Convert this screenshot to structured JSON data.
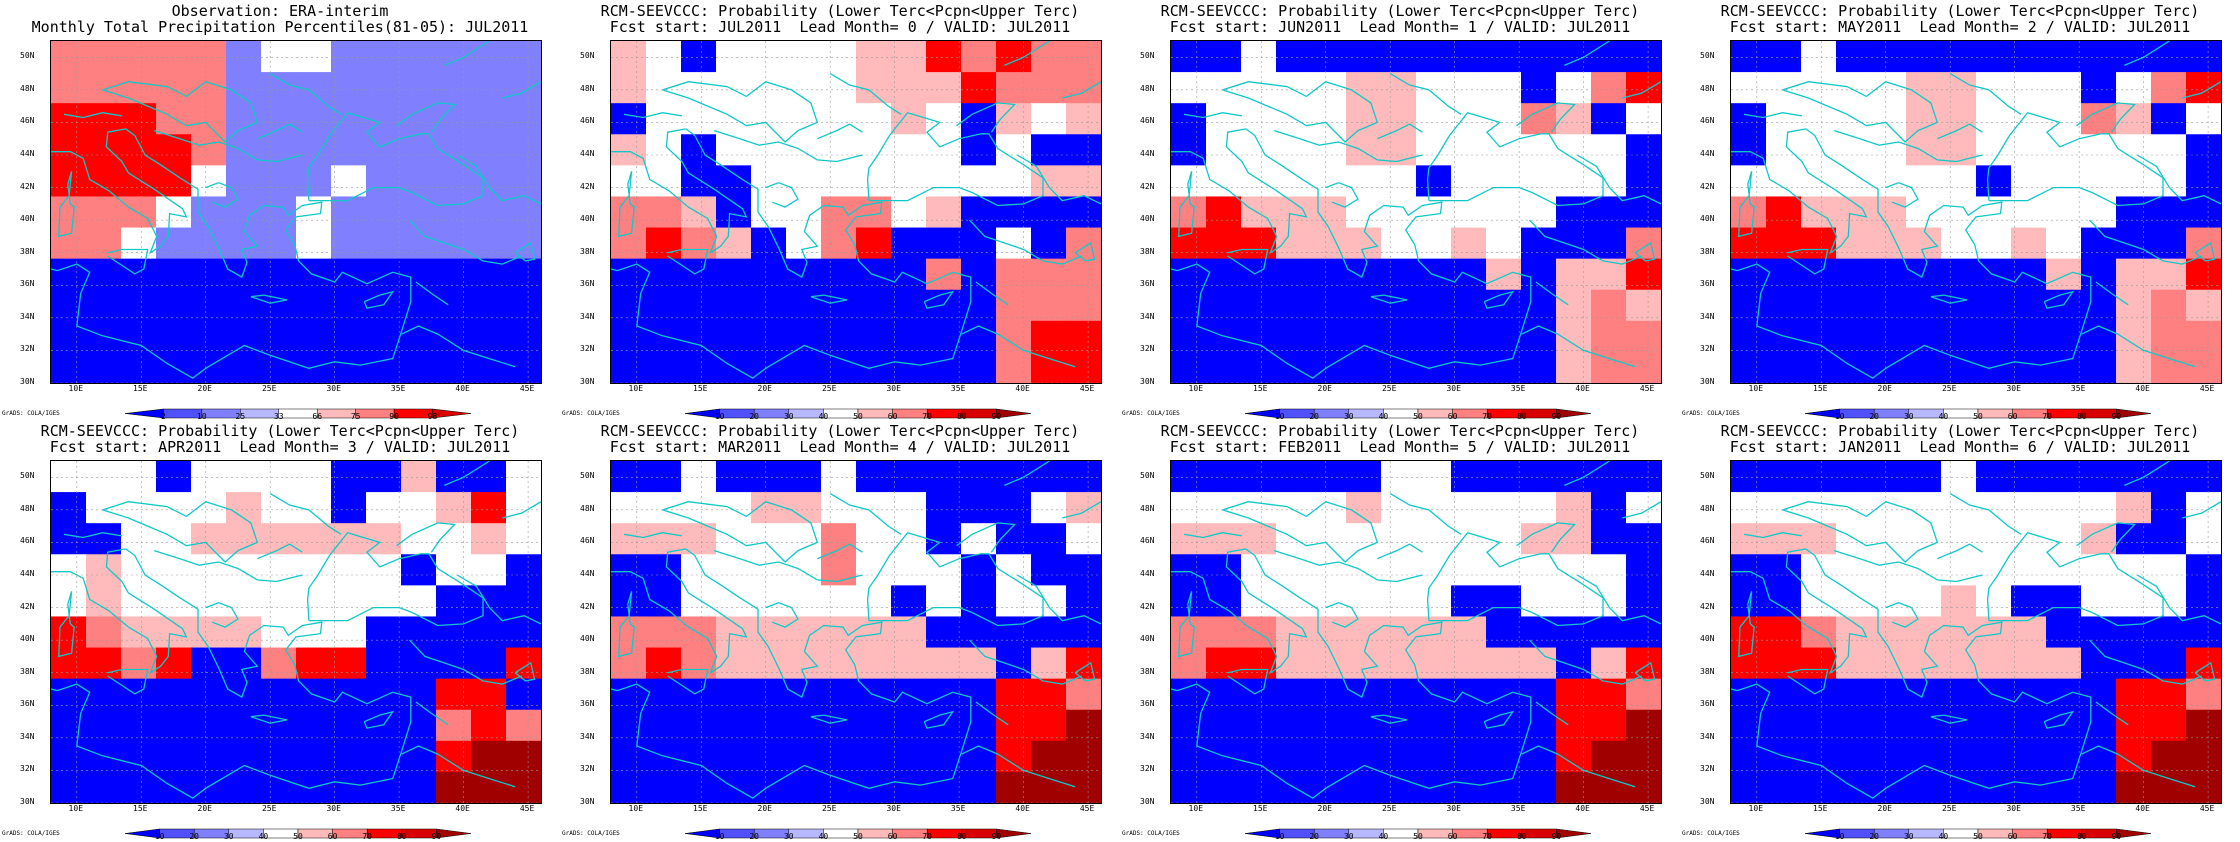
{
  "colors": {
    "blue": "#0000ff",
    "mid_blue": "#5050ff",
    "light_blue": "#8080ff",
    "pale_blue": "#b8b8ff",
    "white": "#ffffff",
    "pale_red": "#ffbbbb",
    "light_red": "#ff8080",
    "red": "#ff0000",
    "mid_red": "#d80000",
    "dark_red": "#a00000",
    "coast": "#10c8c8"
  },
  "panels": [
    {
      "title1": "Observation: ERA-interim",
      "title2": "Monthly Total Precipitation Percentiles(81-05): JUL2011",
      "colorbar_labels": [
        "2",
        "10",
        "25",
        "33",
        "66",
        "75",
        "90",
        "98"
      ],
      "credit": "GrADS: COLA/IGES",
      "ylabels": [
        "50N",
        "48N",
        "46N",
        "44N",
        "42N",
        "40N",
        "38N",
        "36N",
        "34N",
        "32N",
        "30N"
      ],
      "xlabels": [
        "10E",
        "15E",
        "20E",
        "25E",
        "30E",
        "35E",
        "40E",
        "45E"
      ]
    },
    {
      "title1": "RCM-SEEVCCC: Probability (Lower Terc<Pcpn<Upper Terc)",
      "title2": "Fcst start: JUL2011  Lead Month= 0 / VALID: JUL2011",
      "colorbar_labels": [
        "10",
        "20",
        "30",
        "40",
        "50",
        "60",
        "70",
        "80",
        "90"
      ],
      "credit": "GrADS: COLA/IGES",
      "ylabels": [
        "50N",
        "48N",
        "46N",
        "44N",
        "42N",
        "40N",
        "38N",
        "36N",
        "34N",
        "32N",
        "30N"
      ],
      "xlabels": [
        "10E",
        "15E",
        "20E",
        "25E",
        "30E",
        "35E",
        "40E",
        "45E"
      ]
    },
    {
      "title1": "RCM-SEEVCCC: Probability (Lower Terc<Pcpn<Upper Terc)",
      "title2": "Fcst start: JUN2011  Lead Month= 1 / VALID: JUL2011",
      "colorbar_labels": [
        "10",
        "20",
        "30",
        "40",
        "50",
        "60",
        "70",
        "80",
        "90"
      ],
      "credit": "GrADS: COLA/IGES",
      "ylabels": [
        "50N",
        "48N",
        "46N",
        "44N",
        "42N",
        "40N",
        "38N",
        "36N",
        "34N",
        "32N",
        "30N"
      ],
      "xlabels": [
        "10E",
        "15E",
        "20E",
        "25E",
        "30E",
        "35E",
        "40E",
        "45E"
      ]
    },
    {
      "title1": "RCM-SEEVCCC: Probability (Lower Terc<Pcpn<Upper Terc)",
      "title2": "Fcst start: MAY2011  Lead Month= 2 / VALID: JUL2011",
      "colorbar_labels": [
        "10",
        "20",
        "30",
        "40",
        "50",
        "60",
        "70",
        "80",
        "90"
      ],
      "credit": "GrADS: COLA/IGES",
      "ylabels": [
        "50N",
        "48N",
        "46N",
        "44N",
        "42N",
        "40N",
        "38N",
        "36N",
        "34N",
        "32N",
        "30N"
      ],
      "xlabels": [
        "10E",
        "15E",
        "20E",
        "25E",
        "30E",
        "35E",
        "40E",
        "45E"
      ]
    },
    {
      "title1": "RCM-SEEVCCC: Probability (Lower Terc<Pcpn<Upper Terc)",
      "title2": "Fcst start: APR2011  Lead Month= 3 / VALID: JUL2011",
      "colorbar_labels": [
        "10",
        "20",
        "30",
        "40",
        "50",
        "60",
        "70",
        "80",
        "90"
      ],
      "credit": "GrADS: COLA/IGES",
      "ylabels": [
        "50N",
        "48N",
        "46N",
        "44N",
        "42N",
        "40N",
        "38N",
        "36N",
        "34N",
        "32N",
        "30N"
      ],
      "xlabels": [
        "10E",
        "15E",
        "20E",
        "25E",
        "30E",
        "35E",
        "40E",
        "45E"
      ]
    },
    {
      "title1": "RCM-SEEVCCC: Probability (Lower Terc<Pcpn<Upper Terc)",
      "title2": "Fcst start: MAR2011  Lead Month= 4 / VALID: JUL2011",
      "colorbar_labels": [
        "10",
        "20",
        "30",
        "40",
        "50",
        "60",
        "70",
        "80",
        "90"
      ],
      "credit": "GrADS: COLA/IGES",
      "ylabels": [
        "50N",
        "48N",
        "46N",
        "44N",
        "42N",
        "40N",
        "38N",
        "36N",
        "34N",
        "32N",
        "30N"
      ],
      "xlabels": [
        "10E",
        "15E",
        "20E",
        "25E",
        "30E",
        "35E",
        "40E",
        "45E"
      ]
    },
    {
      "title1": "RCM-SEEVCCC: Probability (Lower Terc<Pcpn<Upper Terc)",
      "title2": "Fcst start: FEB2011  Lead Month= 5 / VALID: JUL2011",
      "colorbar_labels": [
        "10",
        "20",
        "30",
        "40",
        "50",
        "60",
        "70",
        "80",
        "90"
      ],
      "credit": "GrADS: COLA/IGES",
      "ylabels": [
        "50N",
        "48N",
        "46N",
        "44N",
        "42N",
        "40N",
        "38N",
        "36N",
        "34N",
        "32N",
        "30N"
      ],
      "xlabels": [
        "10E",
        "15E",
        "20E",
        "25E",
        "30E",
        "35E",
        "40E",
        "45E"
      ]
    },
    {
      "title1": "RCM-SEEVCCC: Probability (Lower Terc<Pcpn<Upper Terc)",
      "title2": "Fcst start: JAN2011  Lead Month= 6 / VALID: JUL2011",
      "colorbar_labels": [
        "10",
        "20",
        "30",
        "40",
        "50",
        "60",
        "70",
        "80",
        "90"
      ],
      "credit": "GrADS: COLA/IGES",
      "ylabels": [
        "50N",
        "48N",
        "46N",
        "44N",
        "42N",
        "40N",
        "38N",
        "36N",
        "34N",
        "32N",
        "30N"
      ],
      "xlabels": [
        "10E",
        "15E",
        "20E",
        "25E",
        "30E",
        "35E",
        "40E",
        "45E"
      ]
    }
  ],
  "chart_data": [
    {
      "type": "heatmap",
      "title": "Observation: ERA-interim / Monthly Total Precipitation Percentiles(81-05): JUL2011",
      "xlim": [
        8,
        46
      ],
      "ylim": [
        30,
        51
      ],
      "grid": true,
      "levels": [
        "<2",
        "2-10",
        "10-25",
        "25-33",
        "33-66",
        "66-75",
        "75-90",
        "90-98",
        ">98"
      ],
      "cells": [
        "rrrrrbwwbbbbbb",
        "rrrrrbbbbbbbbb",
        "RRRrrbbbbbbbbb",
        "RRRRrbbbbbbbbb",
        "RRRRwbbbwbbbbb",
        "rrrwbbbwbbbbbb",
        "rrwbbbbwbbbbbb",
        "BBBBBBBBBBBBBB",
        "BBBBBBBBBBBBBB",
        "BBBBBBBBBBBBBB",
        "BBBBBBBBBBBBBB"
      ]
    },
    {
      "type": "heatmap",
      "title": "RCM-SEEVCCC: Probability (Lower Terc<Pcpn<Upper Terc) Fcst start: JUL2011 Lead Month= 0",
      "xlim": [
        8,
        46
      ],
      "ylim": [
        30,
        51
      ],
      "grid": true,
      "levels": [
        "<10",
        "10-20",
        "20-30",
        "30-40",
        "40-50",
        "50-60",
        "60-70",
        "70-80",
        "80-90",
        ">90"
      ],
      "cells": [
        "pwBwwwwppRrRrr",
        "pwwwwwwpppRrrr",
        "BwwwwwwwpwBpwp",
        "pwBwwwwwwwBwBB",
        "wwBBwwwwwwwwpp",
        "rrpBwwrrwpBBBB",
        "rRrpBwrRBBBwBr",
        "BBBBBBBBBrBrrr",
        "BBBBBBBBBBBrrr",
        "BBBBBBBBBBBrRR",
        "BBBBBBBBBBBrRR"
      ]
    },
    {
      "type": "heatmap",
      "title": "RCM-SEEVCCC: Probability (Lower Terc<Pcpn<Upper Terc) Fcst start: JUN2011 Lead Month= 1",
      "xlim": [
        8,
        46
      ],
      "ylim": [
        30,
        51
      ],
      "grid": true,
      "levels": [
        "<10",
        "10-20",
        "20-30",
        "30-40",
        "40-50",
        "50-60",
        "60-70",
        "70-80",
        "80-90",
        ">90"
      ],
      "cells": [
        "BBwBBBBBBBBBBB",
        "wwwwwppwwwBwrR",
        "BwwwwppwwwrpBw",
        "BwwwwppwwwwwwB",
        "wwwwwwwBwwwwwB",
        "rRpppwwwwwwBBB",
        "RRRpppwwpwBBBr",
        "BBBBBBBBBpBppR",
        "BBBBBBBBBBBprp",
        "BBBBBBBBBBBprr",
        "BBBBBBBBBBBprr"
      ]
    },
    {
      "type": "heatmap",
      "title": "RCM-SEEVCCC: Probability (Lower Terc<Pcpn<Upper Terc) Fcst start: MAY2011 Lead Month= 2",
      "xlim": [
        8,
        46
      ],
      "ylim": [
        30,
        51
      ],
      "grid": true,
      "levels": [
        "<10",
        "10-20",
        "20-30",
        "30-40",
        "40-50",
        "50-60",
        "60-70",
        "70-80",
        "80-90",
        ">90"
      ],
      "cells": [
        "BBwBBBBBBBBBBB",
        "wwwwwppwwwBwrR",
        "BwwwwppwwwrpBw",
        "BwwwwppwwwwwwB",
        "wwwwwwwBwwwwwB",
        "rRpppwwwwwwBBB",
        "RRRpppwwpwBBBr",
        "BBBBBBBBBpBppR",
        "BBBBBBBBBBBprp",
        "BBBBBBBBBBBprr",
        "BBBBBBBBBBBprr"
      ]
    },
    {
      "type": "heatmap",
      "title": "RCM-SEEVCCC: Probability (Lower Terc<Pcpn<Upper Terc) Fcst start: APR2011 Lead Month= 3",
      "xlim": [
        8,
        46
      ],
      "ylim": [
        30,
        51
      ],
      "grid": true,
      "levels": [
        "<10",
        "10-20",
        "20-30",
        "30-40",
        "40-50",
        "50-60",
        "60-70",
        "70-80",
        "80-90",
        ">90"
      ],
      "cells": [
        "wwwBwwwwBBpBBw",
        "BwwwwpwwBwwpRw",
        "BBwwppppppwwpw",
        "wpwwwwwwwwBwwB",
        "wpwwwwwwwwwBBB",
        "RrppppwwwBBBBB",
        "RRrRBBrRRBBBBR",
        "BBBBBBBBBBBRRB",
        "BBBBBBBBBBBrRr",
        "BBBBBBBBBBBRDD",
        "BBBBBBBBBBBDDD"
      ]
    },
    {
      "type": "heatmap",
      "title": "RCM-SEEVCCC: Probability (Lower Terc<Pcpn<Upper Terc) Fcst start: MAR2011 Lead Month= 4",
      "xlim": [
        8,
        46
      ],
      "ylim": [
        30,
        51
      ],
      "grid": true,
      "levels": [
        "<10",
        "10-20",
        "20-30",
        "30-40",
        "40-50",
        "50-60",
        "60-70",
        "70-80",
        "80-90",
        ">90"
      ],
      "cells": [
        "BBwBBBwBBBBBBB",
        "wwwwppwwwBBBwp",
        "pppwwwrwwBwBBw",
        "BBwwwwrwwwBwBB",
        "BBwwwwwwBwBwwB",
        "rrrppppppBBBBB",
        "rRrppppppppBpR",
        "BBBBBBBBBBBRRr",
        "BBBBBBBBBBBRRD",
        "BBBBBBBBBBBRDD",
        "BBBBBBBBBBBDDD"
      ]
    },
    {
      "type": "heatmap",
      "title": "RCM-SEEVCCC: Probability (Lower Terc<Pcpn<Upper Terc) Fcst start: FEB2011 Lead Month= 5",
      "xlim": [
        8,
        46
      ],
      "ylim": [
        30,
        51
      ],
      "grid": true,
      "levels": [
        "<10",
        "10-20",
        "20-30",
        "30-40",
        "40-50",
        "50-60",
        "60-70",
        "70-80",
        "80-90",
        ">90"
      ],
      "cells": [
        "BBBBBBwwBBBBBB",
        "wwwwwpwwwwwpBw",
        "pppwwwwwwwppBB",
        "BBwwwwwwwwwwwB",
        "BBwwwwwwBBwwwB",
        "rrrppppppBBBBB",
        "rRRppppppppBpR",
        "BBBBBBBBBBBRRr",
        "BBBBBBBBBBBRRD",
        "BBBBBBBBBBBRDD",
        "BBBBBBBBBBBDDD"
      ]
    },
    {
      "type": "heatmap",
      "title": "RCM-SEEVCCC: Probability (Lower Terc<Pcpn<Upper Terc) Fcst start: JAN2011 Lead Month= 6",
      "xlim": [
        8,
        46
      ],
      "ylim": [
        30,
        51
      ],
      "grid": true,
      "levels": [
        "<10",
        "10-20",
        "20-30",
        "30-40",
        "40-50",
        "50-60",
        "60-70",
        "70-80",
        "80-90",
        ">90"
      ],
      "cells": [
        "BBBBBBwBBBBBBB",
        "wwwwwwwwwwwpBw",
        "pppwwwwwwwpBBw",
        "BBwwwwwwwwwwwB",
        "BBwwwwpwBBwwwB",
        "RRrppppppBBBBB",
        "RRRpppppppBBBR",
        "BBBBBBBBBBBRRr",
        "BBBBBBBBBBBRRD",
        "BBBBBBBBBBBRDD",
        "BBBBBBBBBBBDDD"
      ]
    }
  ]
}
